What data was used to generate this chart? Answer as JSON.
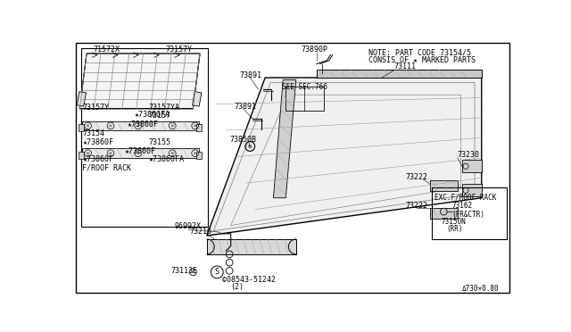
{
  "bg_color": "#ffffff",
  "line_color": "#000000",
  "fig_width": 6.4,
  "fig_height": 3.72,
  "dpi": 100,
  "note_line1": "NOTE: PART CODE 73154/5",
  "note_line2": "CONSIS OF ★ MARKED PARTS",
  "diagram_ref": "Δ730×0.80"
}
